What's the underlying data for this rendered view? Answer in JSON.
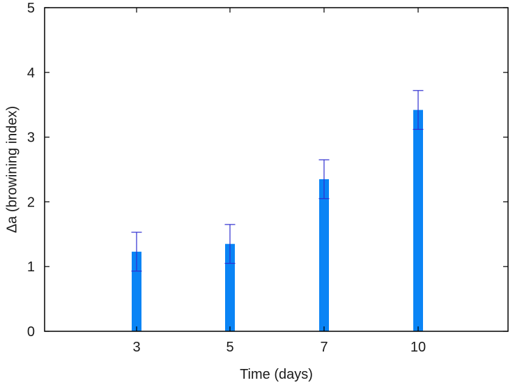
{
  "chart_data": {
    "type": "bar",
    "title": "",
    "xlabel": "Time (days)",
    "ylabel": "Δa (browining index)",
    "categories": [
      "3",
      "5",
      "7",
      "10"
    ],
    "values": [
      1.23,
      1.35,
      2.35,
      3.42
    ],
    "errors": [
      0.3,
      0.3,
      0.3,
      0.3
    ],
    "ylim": [
      0,
      5
    ],
    "yticks": [
      "0",
      "1",
      "2",
      "3",
      "4",
      "5"
    ],
    "grid": false,
    "colors": {
      "bar": "#0a84f5",
      "error_bar": "#2f2fd0",
      "axis": "#000000"
    }
  }
}
